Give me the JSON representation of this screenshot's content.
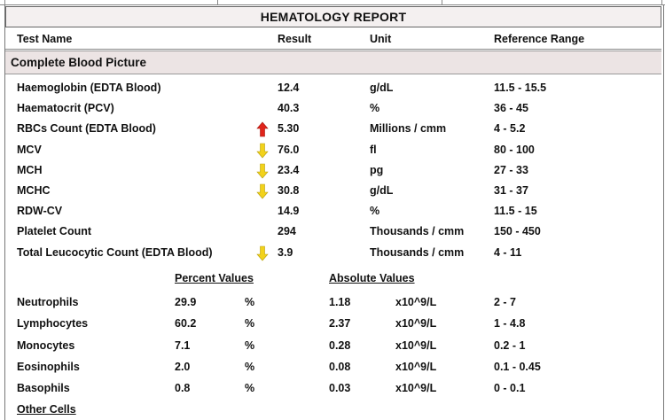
{
  "report": {
    "title": "HEMATOLOGY REPORT",
    "columns": {
      "test_name": "Test Name",
      "result": "Result",
      "unit": "Unit",
      "reference_range": "Reference Range"
    },
    "section": "Complete Blood Picture",
    "tests": [
      {
        "name": "Haemoglobin (EDTA Blood)",
        "flag": "",
        "result": "12.4",
        "unit": "g/dL",
        "range": "11.5 - 15.5"
      },
      {
        "name": "Haematocrit (PCV)",
        "flag": "",
        "result": "40.3",
        "unit": "%",
        "range": "36 - 45"
      },
      {
        "name": "RBCs Count (EDTA Blood)",
        "flag": "high",
        "result": "5.30",
        "unit": "Millions / cmm",
        "range": "4 - 5.2"
      },
      {
        "name": "MCV",
        "flag": "low",
        "result": "76.0",
        "unit": "fl",
        "range": "80 - 100"
      },
      {
        "name": "MCH",
        "flag": "low",
        "result": "23.4",
        "unit": "pg",
        "range": "27 - 33"
      },
      {
        "name": "MCHC",
        "flag": "low",
        "result": "30.8",
        "unit": "g/dL",
        "range": "31 - 37"
      },
      {
        "name": "RDW-CV",
        "flag": "",
        "result": "14.9",
        "unit": "%",
        "range": "11.5 - 15"
      },
      {
        "name": "Platelet Count",
        "flag": "",
        "result": "294",
        "unit": "Thousands / cmm",
        "range": "150 - 450"
      },
      {
        "name": "Total Leucocytic Count (EDTA Blood)",
        "flag": "low",
        "result": "3.9",
        "unit": "Thousands / cmm",
        "range": "4 - 11"
      }
    ],
    "differential": {
      "percent_header": "Percent Values",
      "absolute_header": "Absolute Values",
      "rows": [
        {
          "name": "Neutrophils",
          "percent": "29.9",
          "percent_unit": "%",
          "absolute": "1.18",
          "absolute_unit": "x10^9/L",
          "range": "2 - 7"
        },
        {
          "name": "Lymphocytes",
          "percent": "60.2",
          "percent_unit": "%",
          "absolute": "2.37",
          "absolute_unit": "x10^9/L",
          "range": "1 - 4.8"
        },
        {
          "name": "Monocytes",
          "percent": "7.1",
          "percent_unit": "%",
          "absolute": "0.28",
          "absolute_unit": "x10^9/L",
          "range": "0.2 - 1"
        },
        {
          "name": "Eosinophils",
          "percent": "2.0",
          "percent_unit": "%",
          "absolute": "0.08",
          "absolute_unit": "x10^9/L",
          "range": "0.1 - 0.45"
        },
        {
          "name": "Basophils",
          "percent": "0.8",
          "percent_unit": "%",
          "absolute": "0.03",
          "absolute_unit": "x10^9/L",
          "range": "0 - 0.1"
        }
      ]
    },
    "other_cells": "Other Cells",
    "flag_icons": {
      "high": "arrow-up-icon",
      "low": "arrow-down-icon"
    },
    "colors": {
      "high_arrow": "#e0241b",
      "low_arrow": "#f2d21b",
      "section_bg": "#ece4e4",
      "title_bg": "#f4f0f0"
    }
  }
}
